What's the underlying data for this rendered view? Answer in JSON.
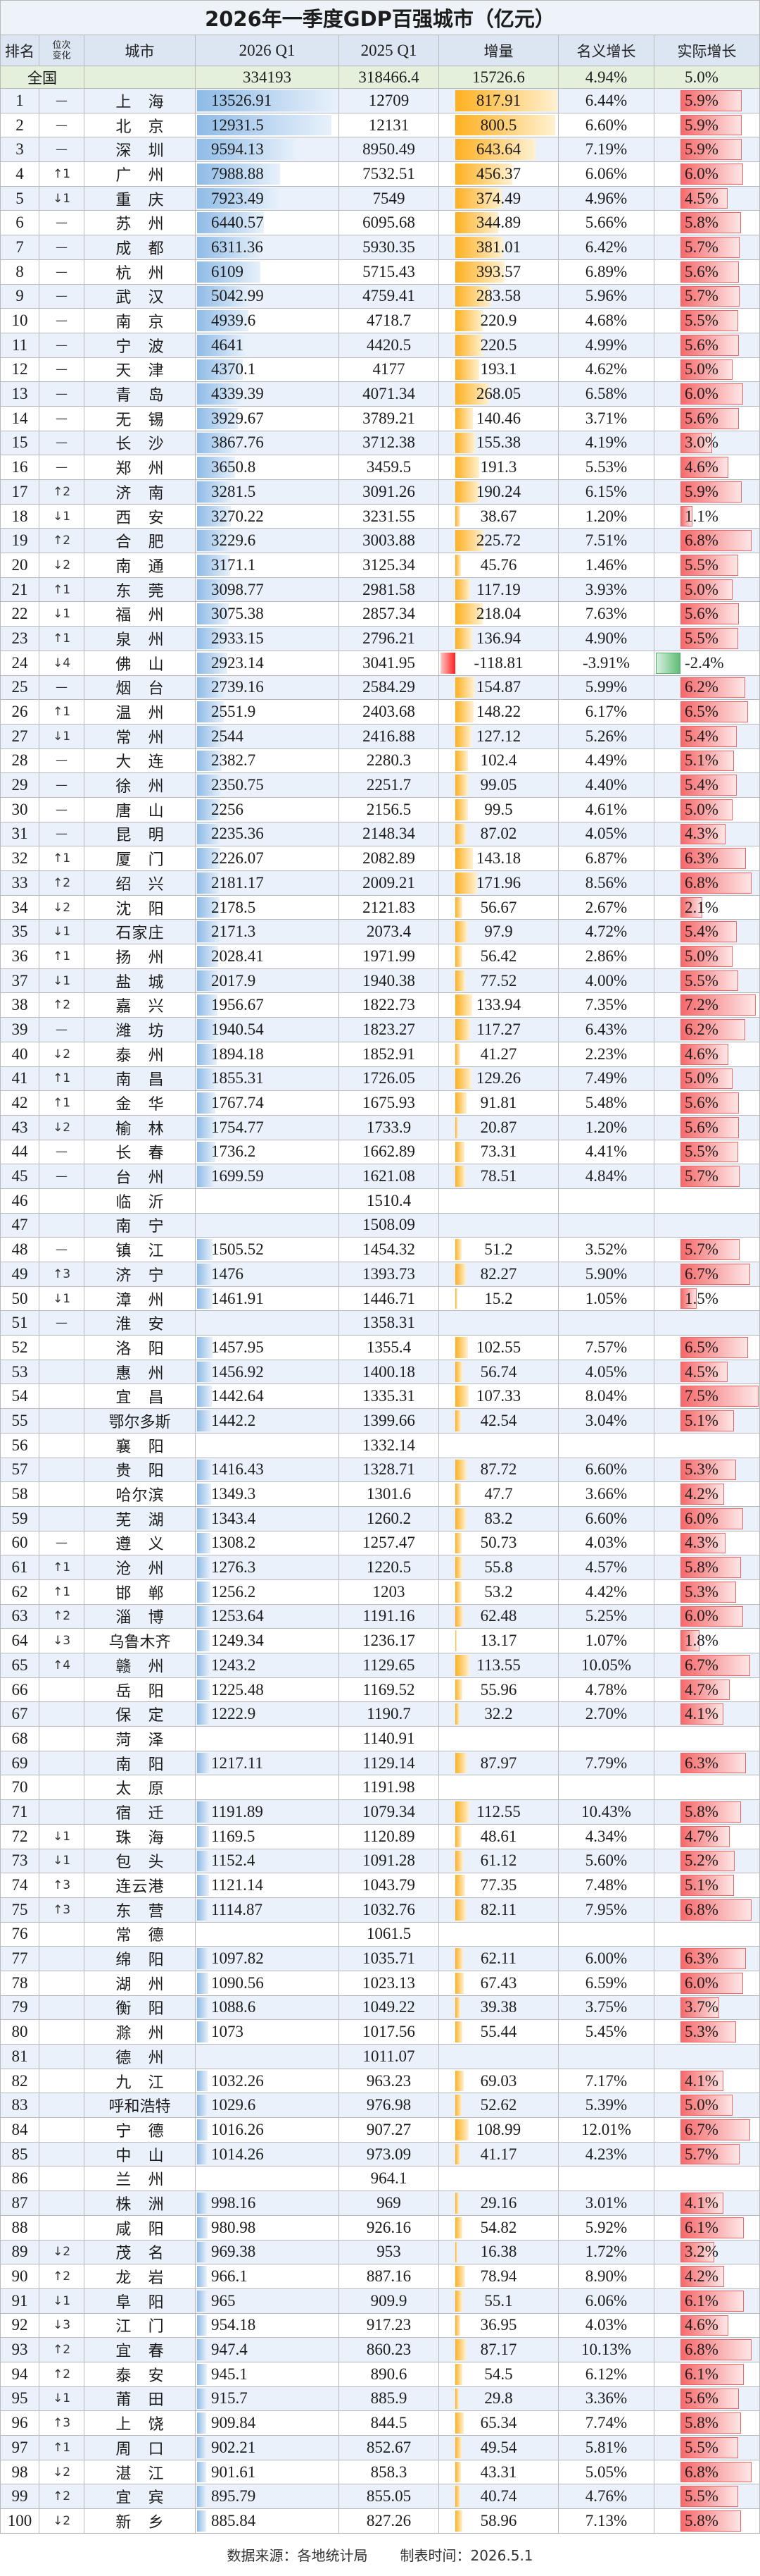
{
  "chart_data": {
    "type": "table",
    "title": "2026年一季度GDP百强城市（亿元）",
    "columns": [
      "排名",
      "位次变化",
      "城市",
      "2026 Q1",
      "2025 Q1",
      "增量",
      "名义增长",
      "实际增长"
    ],
    "national": {
      "label": "全国",
      "q1_2026": "334193",
      "q1_2025": "318466.4",
      "increment": "15726.6",
      "nominal": "4.94%",
      "real": "5.0%"
    },
    "rows": [
      [
        "1",
        "—",
        "上海",
        "13526.91",
        "12709",
        "817.91",
        "6.44%",
        "5.9%"
      ],
      [
        "2",
        "—",
        "北京",
        "12931.5",
        "12131",
        "800.5",
        "6.60%",
        "5.9%"
      ],
      [
        "3",
        "—",
        "深圳",
        "9594.13",
        "8950.49",
        "643.64",
        "7.19%",
        "5.9%"
      ],
      [
        "4",
        "↑1",
        "广州",
        "7988.88",
        "7532.51",
        "456.37",
        "6.06%",
        "6.0%"
      ],
      [
        "5",
        "↓1",
        "重庆",
        "7923.49",
        "7549",
        "374.49",
        "4.96%",
        "4.5%"
      ],
      [
        "6",
        "—",
        "苏州",
        "6440.57",
        "6095.68",
        "344.89",
        "5.66%",
        "5.8%"
      ],
      [
        "7",
        "—",
        "成都",
        "6311.36",
        "5930.35",
        "381.01",
        "6.42%",
        "5.7%"
      ],
      [
        "8",
        "—",
        "杭州",
        "6109",
        "5715.43",
        "393.57",
        "6.89%",
        "5.6%"
      ],
      [
        "9",
        "—",
        "武汉",
        "5042.99",
        "4759.41",
        "283.58",
        "5.96%",
        "5.7%"
      ],
      [
        "10",
        "—",
        "南京",
        "4939.6",
        "4718.7",
        "220.9",
        "4.68%",
        "5.5%"
      ],
      [
        "11",
        "—",
        "宁波",
        "4641",
        "4420.5",
        "220.5",
        "4.99%",
        "5.6%"
      ],
      [
        "12",
        "—",
        "天津",
        "4370.1",
        "4177",
        "193.1",
        "4.62%",
        "5.0%"
      ],
      [
        "13",
        "—",
        "青岛",
        "4339.39",
        "4071.34",
        "268.05",
        "6.58%",
        "6.0%"
      ],
      [
        "14",
        "—",
        "无锡",
        "3929.67",
        "3789.21",
        "140.46",
        "3.71%",
        "5.6%"
      ],
      [
        "15",
        "—",
        "长沙",
        "3867.76",
        "3712.38",
        "155.38",
        "4.19%",
        "3.0%"
      ],
      [
        "16",
        "—",
        "郑州",
        "3650.8",
        "3459.5",
        "191.3",
        "5.53%",
        "4.6%"
      ],
      [
        "17",
        "↑2",
        "济南",
        "3281.5",
        "3091.26",
        "190.24",
        "6.15%",
        "5.9%"
      ],
      [
        "18",
        "↓1",
        "西安",
        "3270.22",
        "3231.55",
        "38.67",
        "1.20%",
        "1.1%"
      ],
      [
        "19",
        "↑2",
        "合肥",
        "3229.6",
        "3003.88",
        "225.72",
        "7.51%",
        "6.8%"
      ],
      [
        "20",
        "↓2",
        "南通",
        "3171.1",
        "3125.34",
        "45.76",
        "1.46%",
        "5.5%"
      ],
      [
        "21",
        "↑1",
        "东莞",
        "3098.77",
        "2981.58",
        "117.19",
        "3.93%",
        "5.0%"
      ],
      [
        "22",
        "↓1",
        "福州",
        "3075.38",
        "2857.34",
        "218.04",
        "7.63%",
        "5.6%"
      ],
      [
        "23",
        "↑1",
        "泉州",
        "2933.15",
        "2796.21",
        "136.94",
        "4.90%",
        "5.5%"
      ],
      [
        "24",
        "↓4",
        "佛山",
        "2923.14",
        "3041.95",
        "-118.81",
        "-3.91%",
        "-2.4%"
      ],
      [
        "25",
        "—",
        "烟台",
        "2739.16",
        "2584.29",
        "154.87",
        "5.99%",
        "6.2%"
      ],
      [
        "26",
        "↑1",
        "温州",
        "2551.9",
        "2403.68",
        "148.22",
        "6.17%",
        "6.5%"
      ],
      [
        "27",
        "↓1",
        "常州",
        "2544",
        "2416.88",
        "127.12",
        "5.26%",
        "5.4%"
      ],
      [
        "28",
        "—",
        "大连",
        "2382.7",
        "2280.3",
        "102.4",
        "4.49%",
        "5.1%"
      ],
      [
        "29",
        "—",
        "徐州",
        "2350.75",
        "2251.7",
        "99.05",
        "4.40%",
        "5.4%"
      ],
      [
        "30",
        "—",
        "唐山",
        "2256",
        "2156.5",
        "99.5",
        "4.61%",
        "5.0%"
      ],
      [
        "31",
        "—",
        "昆明",
        "2235.36",
        "2148.34",
        "87.02",
        "4.05%",
        "4.3%"
      ],
      [
        "32",
        "↑1",
        "厦门",
        "2226.07",
        "2082.89",
        "143.18",
        "6.87%",
        "6.3%"
      ],
      [
        "33",
        "↑2",
        "绍兴",
        "2181.17",
        "2009.21",
        "171.96",
        "8.56%",
        "6.8%"
      ],
      [
        "34",
        "↓2",
        "沈阳",
        "2178.5",
        "2121.83",
        "56.67",
        "2.67%",
        "2.1%"
      ],
      [
        "35",
        "↓1",
        "石家庄",
        "2171.3",
        "2073.4",
        "97.9",
        "4.72%",
        "5.4%"
      ],
      [
        "36",
        "↑1",
        "扬州",
        "2028.41",
        "1971.99",
        "56.42",
        "2.86%",
        "5.0%"
      ],
      [
        "37",
        "↓1",
        "盐城",
        "2017.9",
        "1940.38",
        "77.52",
        "4.00%",
        "5.5%"
      ],
      [
        "38",
        "↑2",
        "嘉兴",
        "1956.67",
        "1822.73",
        "133.94",
        "7.35%",
        "7.2%"
      ],
      [
        "39",
        "—",
        "潍坊",
        "1940.54",
        "1823.27",
        "117.27",
        "6.43%",
        "6.2%"
      ],
      [
        "40",
        "↓2",
        "泰州",
        "1894.18",
        "1852.91",
        "41.27",
        "2.23%",
        "4.6%"
      ],
      [
        "41",
        "↑1",
        "南昌",
        "1855.31",
        "1726.05",
        "129.26",
        "7.49%",
        "5.0%"
      ],
      [
        "42",
        "↑1",
        "金华",
        "1767.74",
        "1675.93",
        "91.81",
        "5.48%",
        "5.6%"
      ],
      [
        "43",
        "↓2",
        "榆林",
        "1754.77",
        "1733.9",
        "20.87",
        "1.20%",
        "5.6%"
      ],
      [
        "44",
        "—",
        "长春",
        "1736.2",
        "1662.89",
        "73.31",
        "4.41%",
        "5.5%"
      ],
      [
        "45",
        "—",
        "台州",
        "1699.59",
        "1621.08",
        "78.51",
        "4.84%",
        "5.7%"
      ],
      [
        "46",
        "",
        "临沂",
        "",
        "1510.4",
        "",
        "",
        ""
      ],
      [
        "47",
        "",
        "南宁",
        "",
        "1508.09",
        "",
        "",
        ""
      ],
      [
        "48",
        "—",
        "镇江",
        "1505.52",
        "1454.32",
        "51.2",
        "3.52%",
        "5.7%"
      ],
      [
        "49",
        "↑3",
        "济宁",
        "1476",
        "1393.73",
        "82.27",
        "5.90%",
        "6.7%"
      ],
      [
        "50",
        "↓1",
        "漳州",
        "1461.91",
        "1446.71",
        "15.2",
        "1.05%",
        "1.5%"
      ],
      [
        "51",
        "—",
        "淮安",
        "",
        "1358.31",
        "",
        "",
        ""
      ],
      [
        "52",
        "",
        "洛阳",
        "1457.95",
        "1355.4",
        "102.55",
        "7.57%",
        "6.5%"
      ],
      [
        "53",
        "",
        "惠州",
        "1456.92",
        "1400.18",
        "56.74",
        "4.05%",
        "4.5%"
      ],
      [
        "54",
        "",
        "宜昌",
        "1442.64",
        "1335.31",
        "107.33",
        "8.04%",
        "7.5%"
      ],
      [
        "55",
        "",
        "鄂尔多斯",
        "1442.2",
        "1399.66",
        "42.54",
        "3.04%",
        "5.1%"
      ],
      [
        "56",
        "",
        "襄阳",
        "",
        "1332.14",
        "",
        "",
        ""
      ],
      [
        "57",
        "",
        "贵阳",
        "1416.43",
        "1328.71",
        "87.72",
        "6.60%",
        "5.3%"
      ],
      [
        "58",
        "",
        "哈尔滨",
        "1349.3",
        "1301.6",
        "47.7",
        "3.66%",
        "4.2%"
      ],
      [
        "59",
        "",
        "芜湖",
        "1343.4",
        "1260.2",
        "83.2",
        "6.60%",
        "6.0%"
      ],
      [
        "60",
        "—",
        "遵义",
        "1308.2",
        "1257.47",
        "50.73",
        "4.03%",
        "4.3%"
      ],
      [
        "61",
        "↑1",
        "沧州",
        "1276.3",
        "1220.5",
        "55.8",
        "4.57%",
        "5.8%"
      ],
      [
        "62",
        "↑1",
        "邯郸",
        "1256.2",
        "1203",
        "53.2",
        "4.42%",
        "5.3%"
      ],
      [
        "63",
        "↑2",
        "淄博",
        "1253.64",
        "1191.16",
        "62.48",
        "5.25%",
        "6.0%"
      ],
      [
        "64",
        "↓3",
        "乌鲁木齐",
        "1249.34",
        "1236.17",
        "13.17",
        "1.07%",
        "1.8%"
      ],
      [
        "65",
        "↑4",
        "赣州",
        "1243.2",
        "1129.65",
        "113.55",
        "10.05%",
        "6.7%"
      ],
      [
        "66",
        "",
        "岳阳",
        "1225.48",
        "1169.52",
        "55.96",
        "4.78%",
        "4.7%"
      ],
      [
        "67",
        "",
        "保定",
        "1222.9",
        "1190.7",
        "32.2",
        "2.70%",
        "4.1%"
      ],
      [
        "68",
        "",
        "菏泽",
        "",
        "1140.91",
        "",
        "",
        ""
      ],
      [
        "69",
        "",
        "南阳",
        "1217.11",
        "1129.14",
        "87.97",
        "7.79%",
        "6.3%"
      ],
      [
        "70",
        "",
        "太原",
        "",
        "1191.98",
        "",
        "",
        ""
      ],
      [
        "71",
        "",
        "宿迁",
        "1191.89",
        "1079.34",
        "112.55",
        "10.43%",
        "5.8%"
      ],
      [
        "72",
        "↓1",
        "珠海",
        "1169.5",
        "1120.89",
        "48.61",
        "4.34%",
        "4.7%"
      ],
      [
        "73",
        "↓1",
        "包头",
        "1152.4",
        "1091.28",
        "61.12",
        "5.60%",
        "5.2%"
      ],
      [
        "74",
        "↑3",
        "连云港",
        "1121.14",
        "1043.79",
        "77.35",
        "7.48%",
        "5.1%"
      ],
      [
        "75",
        "↑3",
        "东营",
        "1114.87",
        "1032.76",
        "82.11",
        "7.95%",
        "6.8%"
      ],
      [
        "76",
        "",
        "常德",
        "",
        "1061.5",
        "",
        "",
        ""
      ],
      [
        "77",
        "",
        "绵阳",
        "1097.82",
        "1035.71",
        "62.11",
        "6.00%",
        "6.3%"
      ],
      [
        "78",
        "",
        "湖州",
        "1090.56",
        "1023.13",
        "67.43",
        "6.59%",
        "6.0%"
      ],
      [
        "79",
        "",
        "衡阳",
        "1088.6",
        "1049.22",
        "39.38",
        "3.75%",
        "3.7%"
      ],
      [
        "80",
        "",
        "滁州",
        "1073",
        "1017.56",
        "55.44",
        "5.45%",
        "5.3%"
      ],
      [
        "81",
        "",
        "德州",
        "",
        "1011.07",
        "",
        "",
        ""
      ],
      [
        "82",
        "",
        "九江",
        "1032.26",
        "963.23",
        "69.03",
        "7.17%",
        "4.1%"
      ],
      [
        "83",
        "",
        "呼和浩特",
        "1029.6",
        "976.98",
        "52.62",
        "5.39%",
        "5.0%"
      ],
      [
        "84",
        "",
        "宁德",
        "1016.26",
        "907.27",
        "108.99",
        "12.01%",
        "6.7%"
      ],
      [
        "85",
        "",
        "中山",
        "1014.26",
        "973.09",
        "41.17",
        "4.23%",
        "5.7%"
      ],
      [
        "86",
        "",
        "兰州",
        "",
        "964.1",
        "",
        "",
        ""
      ],
      [
        "87",
        "",
        "株洲",
        "998.16",
        "969",
        "29.16",
        "3.01%",
        "4.1%"
      ],
      [
        "88",
        "",
        "咸阳",
        "980.98",
        "926.16",
        "54.82",
        "5.92%",
        "6.1%"
      ],
      [
        "89",
        "↓2",
        "茂名",
        "969.38",
        "953",
        "16.38",
        "1.72%",
        "3.2%"
      ],
      [
        "90",
        "↑2",
        "龙岩",
        "966.1",
        "887.16",
        "78.94",
        "8.90%",
        "4.2%"
      ],
      [
        "91",
        "↓1",
        "阜阳",
        "965",
        "909.9",
        "55.1",
        "6.06%",
        "6.1%"
      ],
      [
        "92",
        "↓3",
        "江门",
        "954.18",
        "917.23",
        "36.95",
        "4.03%",
        "4.6%"
      ],
      [
        "93",
        "↑2",
        "宜春",
        "947.4",
        "860.23",
        "87.17",
        "10.13%",
        "6.8%"
      ],
      [
        "94",
        "↑2",
        "泰安",
        "945.1",
        "890.6",
        "54.5",
        "6.12%",
        "6.1%"
      ],
      [
        "95",
        "↓1",
        "莆田",
        "915.7",
        "885.9",
        "29.8",
        "3.36%",
        "5.6%"
      ],
      [
        "96",
        "↑3",
        "上饶",
        "909.84",
        "844.5",
        "65.34",
        "7.74%",
        "5.8%"
      ],
      [
        "97",
        "↑1",
        "周口",
        "902.21",
        "852.67",
        "49.54",
        "5.81%",
        "5.5%"
      ],
      [
        "98",
        "↓2",
        "湛江",
        "901.61",
        "858.3",
        "43.31",
        "5.05%",
        "6.8%"
      ],
      [
        "99",
        "↑2",
        "宜宾",
        "895.79",
        "855.05",
        "40.74",
        "4.76%",
        "5.5%"
      ],
      [
        "100",
        "↓2",
        "新乡",
        "885.84",
        "827.26",
        "58.96",
        "7.13%",
        "5.8%"
      ]
    ],
    "footer": {
      "source": "数据来源：各地统计局",
      "date": "制表时间：2026.5.1"
    }
  },
  "colors": {
    "q1_2026_bar": "#8fbbe6",
    "q1_2026_bar_fade": "#e8f1fb",
    "increment_bar": "#ffb020",
    "increment_bar_fade": "#fff1d2",
    "increment_negative_bar": "#ff2020",
    "increment_negative_bar_fade": "#ffc8c8",
    "real_growth_bar": "#f6696b",
    "real_growth_bar_fade": "#fde6e6",
    "real_growth_negative_bar": "#5fbb76",
    "real_growth_negative_bar_fade": "#d8f0de"
  }
}
